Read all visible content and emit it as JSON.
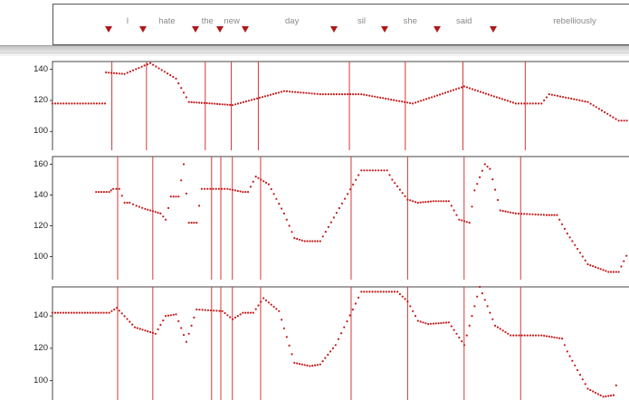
{
  "words": [
    {
      "text": "I",
      "pos": 0.128,
      "marker": 0.096
    },
    {
      "text": "hate",
      "pos": 0.196,
      "marker": 0.155
    },
    {
      "text": "the",
      "pos": 0.266,
      "marker": 0.246
    },
    {
      "text": "new",
      "pos": 0.308,
      "marker": 0.287
    },
    {
      "text": "day",
      "pos": 0.412,
      "marker": 0.332
    },
    {
      "text": "sil",
      "pos": 0.532,
      "marker": 0.484
    },
    {
      "text": "she",
      "pos": 0.616,
      "marker": 0.572
    },
    {
      "text": "said",
      "pos": 0.709,
      "marker": 0.662
    },
    {
      "text": "rebelliously",
      "pos": 0.9,
      "marker": 0.76
    }
  ],
  "colors": {
    "points": "#c41a1a",
    "lines": "#d43838",
    "marker": "#b01818"
  },
  "chart_data": [
    {
      "type": "scatter",
      "title": "",
      "ylim": [
        88,
        145
      ],
      "yticks": [
        100,
        120,
        140
      ],
      "boundaries": [
        0.103,
        0.163,
        0.265,
        0.31,
        0.357,
        0.515,
        0.612,
        0.712,
        0.82
      ],
      "curve": [
        [
          0,
          118
        ],
        [
          0.102,
          118
        ],
        [
          0.104,
          138
        ],
        [
          0.14,
          137
        ],
        [
          0.19,
          144
        ],
        [
          0.24,
          134
        ],
        [
          0.265,
          119
        ],
        [
          0.31,
          118
        ],
        [
          0.35,
          117
        ],
        [
          0.45,
          126
        ],
        [
          0.52,
          124
        ],
        [
          0.6,
          124
        ],
        [
          0.7,
          118
        ],
        [
          0.8,
          129
        ],
        [
          0.9,
          118
        ],
        [
          0.95,
          118
        ],
        [
          0.965,
          124
        ],
        [
          1.04,
          119
        ],
        [
          1.1,
          107
        ],
        [
          1.2,
          107
        ]
      ]
    },
    {
      "type": "scatter",
      "title": "",
      "ylim": [
        85,
        165
      ],
      "yticks": [
        100,
        120,
        140,
        160
      ],
      "boundaries": [
        0.113,
        0.174,
        0.276,
        0.292,
        0.312,
        0.361,
        0.518,
        0.616,
        0.714,
        0.812
      ],
      "curve": [
        [
          0.085,
          142
        ],
        [
          0.11,
          142
        ],
        [
          0.118,
          144
        ],
        [
          0.13,
          144
        ],
        [
          0.14,
          135
        ],
        [
          0.15,
          135
        ],
        [
          0.163,
          133
        ],
        [
          0.18,
          131
        ],
        [
          0.21,
          128
        ],
        [
          0.22,
          124
        ],
        [
          0.23,
          139
        ],
        [
          0.245,
          139
        ],
        [
          0.255,
          160
        ],
        [
          0.265,
          122
        ],
        [
          0.28,
          122
        ],
        [
          0.29,
          144
        ],
        [
          0.34,
          144
        ],
        [
          0.37,
          142
        ],
        [
          0.38,
          142
        ],
        [
          0.395,
          152
        ],
        [
          0.42,
          147
        ],
        [
          0.45,
          128
        ],
        [
          0.47,
          112
        ],
        [
          0.49,
          110
        ],
        [
          0.52,
          110
        ],
        [
          0.6,
          156
        ],
        [
          0.65,
          156
        ],
        [
          0.66,
          150
        ],
        [
          0.69,
          137
        ],
        [
          0.71,
          135
        ],
        [
          0.74,
          136
        ],
        [
          0.77,
          136
        ],
        [
          0.79,
          124
        ],
        [
          0.81,
          122
        ],
        [
          0.82,
          143
        ],
        [
          0.84,
          160
        ],
        [
          0.85,
          157
        ],
        [
          0.87,
          130
        ],
        [
          0.9,
          128
        ],
        [
          0.96,
          127
        ],
        [
          0.98,
          127
        ],
        [
          1.0,
          115
        ],
        [
          1.04,
          95
        ],
        [
          1.08,
          90
        ],
        [
          1.1,
          90
        ],
        [
          1.12,
          104
        ]
      ]
    },
    {
      "type": "scatter",
      "title": "",
      "ylim": [
        88,
        158
      ],
      "yticks": [
        100,
        120,
        140
      ],
      "boundaries": [
        0.113,
        0.174,
        0.276,
        0.292,
        0.312,
        0.361,
        0.518,
        0.616,
        0.714,
        0.812
      ],
      "curve": [
        [
          0,
          142
        ],
        [
          0.11,
          142
        ],
        [
          0.125,
          145
        ],
        [
          0.16,
          133
        ],
        [
          0.2,
          129
        ],
        [
          0.22,
          140
        ],
        [
          0.24,
          141
        ],
        [
          0.26,
          124
        ],
        [
          0.28,
          144
        ],
        [
          0.33,
          143
        ],
        [
          0.35,
          138
        ],
        [
          0.37,
          142
        ],
        [
          0.39,
          142
        ],
        [
          0.41,
          151
        ],
        [
          0.44,
          143
        ],
        [
          0.47,
          111
        ],
        [
          0.5,
          109
        ],
        [
          0.52,
          110
        ],
        [
          0.55,
          122
        ],
        [
          0.6,
          155
        ],
        [
          0.67,
          155
        ],
        [
          0.69,
          149
        ],
        [
          0.71,
          137
        ],
        [
          0.73,
          135
        ],
        [
          0.77,
          136
        ],
        [
          0.8,
          122
        ],
        [
          0.83,
          158
        ],
        [
          0.86,
          134
        ],
        [
          0.89,
          128
        ],
        [
          0.95,
          128
        ],
        [
          0.99,
          126
        ],
        [
          1.0,
          118
        ],
        [
          1.04,
          95
        ],
        [
          1.07,
          90
        ],
        [
          1.09,
          91
        ],
        [
          1.1,
          103
        ]
      ]
    }
  ]
}
